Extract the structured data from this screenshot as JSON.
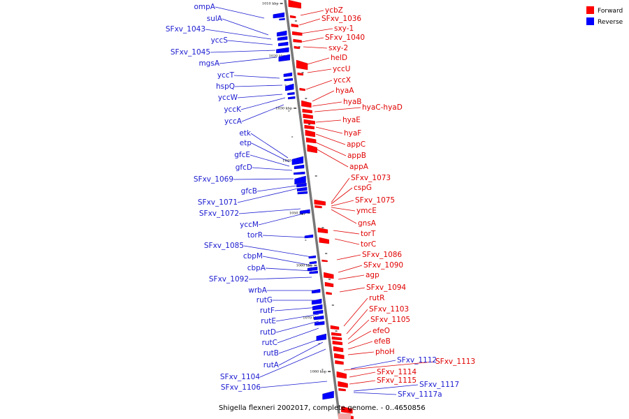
{
  "caption": "Shigella flexneri 2002017, complete genome. - 0..4650856",
  "legend": [
    {
      "label": "Forward",
      "color": "#ff0000"
    },
    {
      "label": "Reverse",
      "color": "#0000ff"
    }
  ],
  "ticks": [
    "1010 kbp",
    "1020 kbp",
    "1030 kbp",
    "1040 kbp",
    "1050 kbp",
    "1060 kbp",
    "1070 kbp",
    "1080 kbp"
  ],
  "forward_genes": [
    "ycbZ",
    "SFxv_1036",
    "sxy-1",
    "SFxv_1040",
    "sxy-2",
    "helD",
    "yccU",
    "yccX",
    "hyaA",
    "hyaB",
    "hyaC-hyaD",
    "hyaE",
    "hyaF",
    "appC",
    "appB",
    "appA",
    "SFxv_1073",
    "cspG",
    "SFxv_1075",
    "ymcE",
    "gnsA",
    "torT",
    "torC",
    "SFxv_1086",
    "SFxv_1090",
    "agp",
    "SFxv_1094",
    "rutR",
    "SFxv_1103",
    "SFxv_1105",
    "efeO",
    "efeB",
    "phoH",
    "SFxv_1113",
    "SFxv_1114",
    "SFxv_1115"
  ],
  "reverse_genes": [
    "ompA",
    "sulA",
    "SFxv_1043",
    "yccS",
    "SFxv_1045",
    "mgsA",
    "yccT",
    "hspQ",
    "yccW",
    "yccK",
    "yccA",
    "etk",
    "etp",
    "gfcE",
    "gfcD",
    "SFxv_1069",
    "gfcB",
    "SFxv_1071",
    "SFxv_1072",
    "yccM",
    "torR",
    "SFxv_1085",
    "cbpM",
    "cbpA",
    "SFxv_1092",
    "wrbA",
    "rutG",
    "rutF",
    "rutE",
    "rutD",
    "rutC",
    "rutB",
    "rutA",
    "SFxv_1104",
    "SFxv_1106",
    "SFxv_1112",
    "SFxv_1117",
    "SFxv_1117a"
  ]
}
